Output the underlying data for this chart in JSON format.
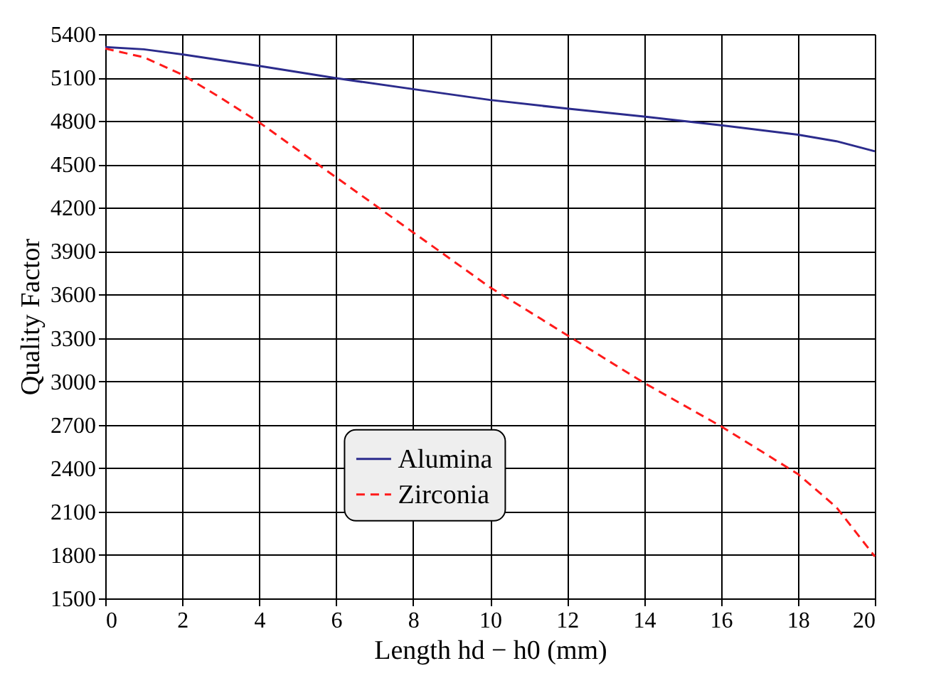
{
  "chart_data": {
    "type": "line",
    "xlabel": "Length hd − h0 (mm)",
    "ylabel": "Quality Factor",
    "xlim": [
      0,
      20
    ],
    "xticks": [
      0,
      2,
      4,
      6,
      8,
      10,
      12,
      14,
      16,
      18,
      20
    ],
    "ylim": [
      1500,
      5400
    ],
    "yticks": [
      1500,
      1800,
      2100,
      2400,
      2700,
      3000,
      3300,
      3600,
      3900,
      4200,
      4500,
      4800,
      5100,
      5400
    ],
    "grid": true,
    "legend": "bottom",
    "series": [
      {
        "name": "Alumina",
        "color": "#2b2b8c",
        "line_style": "solid",
        "x": [
          0,
          1,
          2,
          4,
          6,
          8,
          10,
          12,
          14,
          16,
          18,
          19,
          20
        ],
        "values": [
          5310,
          5295,
          5260,
          5180,
          5095,
          5020,
          4945,
          4885,
          4830,
          4770,
          4705,
          4660,
          4590
        ]
      },
      {
        "name": "Zirconia",
        "color": "#ff1a1a",
        "line_style": "dashed",
        "x": [
          0,
          1,
          2,
          3,
          4,
          6,
          8,
          10,
          12,
          14,
          16,
          18,
          19,
          20
        ],
        "values": [
          5300,
          5240,
          5120,
          4960,
          4790,
          4410,
          4030,
          3650,
          3320,
          2990,
          2690,
          2360,
          2130,
          1790
        ]
      }
    ]
  }
}
